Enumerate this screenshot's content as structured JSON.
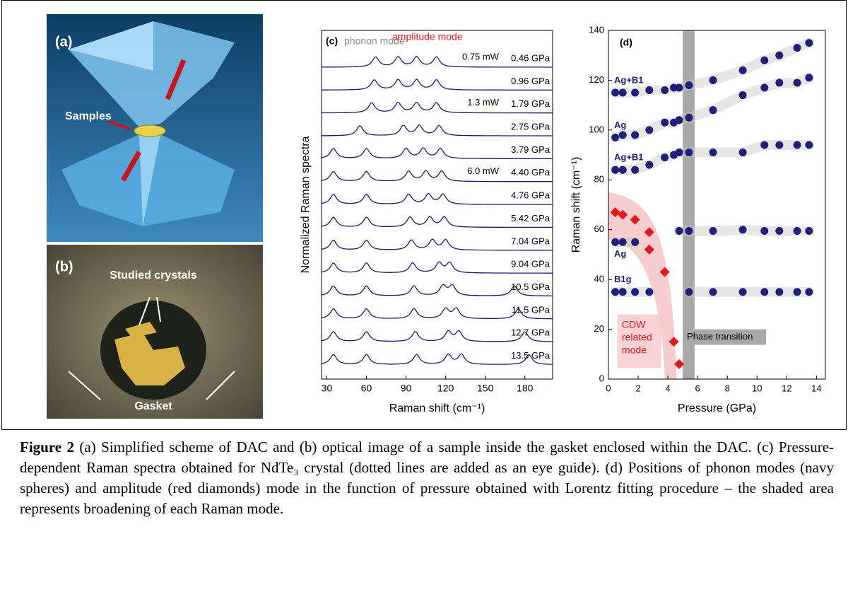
{
  "panels": {
    "a": {
      "label": "(a)",
      "samples": "Samples"
    },
    "b": {
      "label": "(b)",
      "crystals": "Studied crystals",
      "gasket": "Gasket"
    }
  },
  "chart_data": [
    {
      "type": "spectra",
      "panel": "(c)",
      "xlabel": "Raman shift (cm⁻¹)",
      "ylabel": "Normalized Raman spectra",
      "annotations": [
        "phonon mode",
        "amplitude mode"
      ],
      "xlim": [
        26,
        201
      ],
      "xticks": [
        30,
        60,
        90,
        120,
        150,
        180
      ],
      "color": "#1a1a6e",
      "series": [
        {
          "name": "0.46 GPa",
          "note": "0.75 mW",
          "peaks": [
            67,
            84,
            98,
            113
          ]
        },
        {
          "name": "0.96 GPa",
          "peaks": [
            66,
            84,
            98,
            113
          ]
        },
        {
          "name": "1.79 GPa",
          "note": "1.3 mW",
          "peaks": [
            64,
            84,
            98,
            113
          ]
        },
        {
          "name": "2.75 GPa",
          "peaks": [
            55,
            88,
            100,
            115
          ]
        },
        {
          "name": "3.79 GPa",
          "peaks": [
            35,
            60,
            90,
            103,
            116
          ]
        },
        {
          "name": "4.40 GPa",
          "note": "6.0 mW",
          "peaks": [
            35,
            60,
            92,
            105,
            117
          ]
        },
        {
          "name": "4.76 GPa",
          "peaks": [
            35,
            60,
            92,
            107,
            118
          ]
        },
        {
          "name": "5.42 GPa",
          "peaks": [
            35,
            60,
            93,
            108,
            119
          ]
        },
        {
          "name": "7.04 GPa",
          "peaks": [
            35,
            60,
            94,
            110,
            120
          ]
        },
        {
          "name": "9.04 GPa",
          "peaks": [
            35,
            60,
            95,
            115,
            123
          ]
        },
        {
          "name": "10.5 GPa",
          "peaks": [
            35,
            60,
            96,
            118,
            125,
            172
          ]
        },
        {
          "name": "11.5 GPa",
          "peaks": [
            35,
            60,
            96,
            120,
            128,
            175
          ]
        },
        {
          "name": "12.7 GPa",
          "peaks": [
            35,
            60,
            97,
            122,
            130,
            180
          ]
        },
        {
          "name": "13.5 GPa",
          "peaks": [
            35,
            60,
            98,
            122,
            132,
            183
          ]
        }
      ]
    },
    {
      "type": "scatter",
      "panel": "(d)",
      "xlabel": "Pressure (GPa)",
      "ylabel": "Raman shift (cm⁻¹)",
      "xlim": [
        0,
        14.6
      ],
      "xticks": [
        0,
        2,
        4,
        6,
        8,
        10,
        12,
        14
      ],
      "ylim": [
        0,
        140
      ],
      "yticks": [
        0,
        20,
        40,
        60,
        80,
        100,
        120,
        140
      ],
      "phase_transition": {
        "label": "Phase transition",
        "xrange": [
          5.0,
          5.8
        ]
      },
      "annotation": "CDW related mode",
      "series": [
        {
          "label": "Ag+B1",
          "color": "#1f1f7a",
          "x": [
            0.46,
            0.96,
            1.79,
            2.75,
            3.79,
            4.4,
            4.76,
            5.42,
            7.04,
            9.04,
            10.5,
            11.5,
            12.7,
            13.5
          ],
          "values": [
            115,
            115,
            115,
            116,
            116,
            117,
            117,
            118,
            120,
            124,
            128,
            130,
            133,
            135
          ]
        },
        {
          "label": "Ag",
          "color": "#1f1f7a",
          "x": [
            0.46,
            0.96,
            1.79,
            2.75,
            3.79,
            4.4,
            4.76,
            5.42,
            7.04,
            9.04,
            10.5,
            11.5,
            12.7,
            13.5
          ],
          "values": [
            97,
            98,
            98,
            100,
            103,
            103,
            104,
            105,
            108,
            114,
            117,
            119,
            119,
            121
          ]
        },
        {
          "label": "Ag+B1",
          "color": "#1f1f7a",
          "x": [
            0.46,
            0.96,
            1.79,
            2.75,
            3.79,
            4.4,
            4.76,
            5.42,
            7.04,
            9.04,
            10.5,
            11.5,
            12.7,
            13.5
          ],
          "values": [
            84,
            84,
            84,
            86,
            89,
            90,
            91,
            91,
            91,
            91,
            94,
            94,
            94,
            94
          ]
        },
        {
          "label": "Ag",
          "color": "#1f1f7a",
          "x": [
            0.46,
            0.96,
            1.79,
            2.75,
            3.79,
            4.4,
            4.76,
            5.42,
            7.04,
            9.04,
            10.5,
            11.5,
            12.7,
            13.5
          ],
          "values": [
            55,
            55,
            55,
            null,
            null,
            null,
            59.5,
            59.5,
            59.5,
            60,
            59.5,
            59.5,
            59.5,
            59.5
          ]
        },
        {
          "label": "B1g",
          "color": "#1f1f7a",
          "x": [
            0.46,
            0.96,
            1.79,
            2.75,
            3.79,
            4.4,
            4.76,
            5.42,
            7.04,
            9.04,
            10.5,
            11.5,
            12.7,
            13.5
          ],
          "values": [
            35,
            35,
            35,
            35,
            null,
            null,
            null,
            35,
            35,
            35,
            35,
            35,
            35,
            35
          ]
        },
        {
          "color": "#e8141c",
          "marker": "diamond",
          "x": [
            0.46,
            0.96,
            1.79,
            2.75,
            2.75,
            3.79,
            4.4,
            4.76
          ],
          "values": [
            67,
            66,
            64,
            59,
            52,
            43,
            15,
            6
          ]
        }
      ]
    }
  ],
  "caption": {
    "label": "Figure 2",
    "text": "(a) Simplified scheme of DAC and (b) optical image of a sample inside the gasket enclosed within the DAC. (c) Pressure-dependent Raman spectra obtained for NdTe₃ crystal (dotted lines are added as an eye guide). (d) Positions of  phonon modes (navy spheres) and amplitude (red diamonds) mode in the function of pressure obtained with Lorentz fitting procedure – the shaded area represents broadening of each Raman mode."
  }
}
